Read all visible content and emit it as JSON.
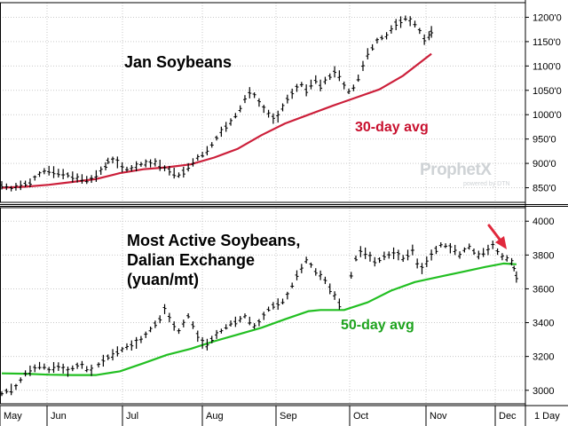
{
  "chart_data": [
    {
      "type": "ohlc",
      "title": "Jan Soybeans",
      "x": [
        "May",
        "Jun",
        "Jul",
        "Aug",
        "Sep",
        "Oct",
        "Nov",
        "Dec"
      ],
      "ylim": [
        820,
        1230
      ],
      "y_ticks": [
        "1200'0",
        "1150'0",
        "1100'0",
        "1050'0",
        "1000'0",
        "950'0",
        "900'0",
        "850'0"
      ],
      "y_tick_values": [
        1200,
        1150,
        1100,
        1050,
        1000,
        950,
        900,
        850
      ],
      "grid": true,
      "price_series": {
        "color": "#000000",
        "values": [
          [
            0,
            855
          ],
          [
            4,
            852
          ],
          [
            8,
            848
          ],
          [
            12,
            852
          ],
          [
            16,
            855
          ],
          [
            20,
            858
          ],
          [
            24,
            860
          ],
          [
            28,
            870
          ],
          [
            32,
            878
          ],
          [
            36,
            884
          ],
          [
            40,
            885
          ],
          [
            44,
            882
          ],
          [
            48,
            880
          ],
          [
            52,
            878
          ],
          [
            56,
            876
          ],
          [
            60,
            872
          ],
          [
            64,
            870
          ],
          [
            68,
            868
          ],
          [
            72,
            866
          ],
          [
            76,
            868
          ],
          [
            80,
            874
          ],
          [
            84,
            885
          ],
          [
            88,
            894
          ],
          [
            90,
            905
          ],
          [
            94,
            907
          ],
          [
            98,
            902
          ],
          [
            102,
            892
          ],
          [
            106,
            888
          ],
          [
            110,
            890
          ],
          [
            114,
            894
          ],
          [
            118,
            898
          ],
          [
            122,
            900
          ],
          [
            126,
            900
          ],
          [
            130,
            902
          ],
          [
            134,
            896
          ],
          [
            138,
            890
          ],
          [
            142,
            885
          ],
          [
            146,
            880
          ],
          [
            150,
            876
          ],
          [
            154,
            882
          ],
          [
            158,
            892
          ],
          [
            162,
            902
          ],
          [
            166,
            912
          ],
          [
            170,
            918
          ],
          [
            174,
            926
          ],
          [
            178,
            938
          ],
          [
            182,
            952
          ],
          [
            186,
            965
          ],
          [
            190,
            975
          ],
          [
            194,
            985
          ],
          [
            198,
            998
          ],
          [
            202,
            1012
          ],
          [
            206,
            1032
          ],
          [
            210,
            1045
          ],
          [
            214,
            1040
          ],
          [
            218,
            1025
          ],
          [
            222,
            1012
          ],
          [
            226,
            1002
          ],
          [
            230,
            992
          ],
          [
            234,
            996
          ],
          [
            238,
            1015
          ],
          [
            242,
            1032
          ],
          [
            246,
            1043
          ],
          [
            250,
            1055
          ],
          [
            254,
            1062
          ],
          [
            258,
            1050
          ],
          [
            262,
            1062
          ],
          [
            266,
            1072
          ],
          [
            270,
            1060
          ],
          [
            274,
            1070
          ],
          [
            278,
            1078
          ],
          [
            282,
            1088
          ],
          [
            286,
            1080
          ],
          [
            290,
            1060
          ],
          [
            294,
            1048
          ],
          [
            298,
            1055
          ],
          [
            302,
            1075
          ],
          [
            306,
            1100
          ],
          [
            310,
            1125
          ],
          [
            314,
            1138
          ],
          [
            318,
            1152
          ],
          [
            322,
            1158
          ],
          [
            326,
            1162
          ],
          [
            330,
            1175
          ],
          [
            334,
            1185
          ],
          [
            338,
            1190
          ],
          [
            342,
            1198
          ],
          [
            346,
            1192
          ],
          [
            350,
            1186
          ],
          [
            354,
            1172
          ],
          [
            358,
            1154
          ],
          [
            362,
            1162
          ],
          [
            364,
            1170
          ]
        ]
      },
      "moving_average": {
        "label": "30-day avg",
        "color": "#cc1f3a",
        "values": [
          [
            0,
            850
          ],
          [
            20,
            852
          ],
          [
            40,
            856
          ],
          [
            60,
            862
          ],
          [
            80,
            868
          ],
          [
            100,
            880
          ],
          [
            120,
            888
          ],
          [
            140,
            892
          ],
          [
            160,
            898
          ],
          [
            180,
            912
          ],
          [
            200,
            930
          ],
          [
            220,
            958
          ],
          [
            240,
            982
          ],
          [
            260,
            1000
          ],
          [
            280,
            1018
          ],
          [
            300,
            1035
          ],
          [
            320,
            1052
          ],
          [
            340,
            1080
          ],
          [
            364,
            1125
          ]
        ]
      },
      "watermark": [
        "ProphetX",
        "powered by DTN"
      ]
    },
    {
      "type": "ohlc",
      "title_lines": [
        "Most Active Soybeans,",
        "Dalian Exchange",
        "(yuan/mt)"
      ],
      "x": [
        "May",
        "Jun",
        "Jul",
        "Aug",
        "Sep",
        "Oct",
        "Nov",
        "Dec"
      ],
      "ylim": [
        2920,
        4080
      ],
      "y_ticks": [
        "4000",
        "3800",
        "3600",
        "3400",
        "3200",
        "3000"
      ],
      "y_tick_values": [
        4000,
        3800,
        3600,
        3400,
        3200,
        3000
      ],
      "grid": true,
      "price_series": {
        "color": "#000000",
        "segments": [
          [
            [
              0,
              2980
            ],
            [
              4,
              2995
            ],
            [
              8,
              3005
            ],
            [
              12,
              3020
            ],
            [
              16,
              3060
            ],
            [
              20,
              3100
            ],
            [
              24,
              3115
            ],
            [
              28,
              3130
            ],
            [
              32,
              3145
            ],
            [
              36,
              3140
            ],
            [
              40,
              3120
            ],
            [
              44,
              3135
            ],
            [
              48,
              3140
            ],
            [
              52,
              3128
            ],
            [
              56,
              3110
            ],
            [
              60,
              3130
            ],
            [
              64,
              3145
            ],
            [
              68,
              3150
            ],
            [
              72,
              3125
            ],
            [
              76,
              3118
            ]
          ],
          [
            [
              82,
              3150
            ],
            [
              86,
              3175
            ],
            [
              90,
              3195
            ],
            [
              94,
              3210
            ],
            [
              98,
              3230
            ],
            [
              102,
              3240
            ],
            [
              106,
              3258
            ],
            [
              110,
              3265
            ],
            [
              114,
              3280
            ],
            [
              118,
              3300
            ],
            [
              122,
              3328
            ],
            [
              126,
              3360
            ],
            [
              130,
              3390
            ],
            [
              134,
              3420
            ],
            [
              138,
              3480
            ],
            [
              142,
              3430
            ],
            [
              146,
              3380
            ],
            [
              150,
              3350
            ],
            [
              154,
              3395
            ],
            [
              158,
              3440
            ],
            [
              162,
              3385
            ],
            [
              166,
              3320
            ],
            [
              170,
              3280
            ],
            [
              174,
              3270
            ],
            [
              178,
              3300
            ],
            [
              182,
              3330
            ],
            [
              186,
              3350
            ],
            [
              190,
              3375
            ],
            [
              194,
              3395
            ],
            [
              198,
              3405
            ],
            [
              202,
              3420
            ],
            [
              206,
              3440
            ],
            [
              210,
              3410
            ],
            [
              214,
              3380
            ],
            [
              218,
              3400
            ],
            [
              222,
              3440
            ],
            [
              226,
              3480
            ],
            [
              230,
              3500
            ],
            [
              234,
              3510
            ],
            [
              238,
              3525
            ],
            [
              242,
              3560
            ],
            [
              246,
              3620
            ],
            [
              250,
              3680
            ],
            [
              254,
              3720
            ],
            [
              258,
              3770
            ],
            [
              262,
              3740
            ],
            [
              266,
              3700
            ],
            [
              270,
              3680
            ],
            [
              274,
              3650
            ],
            [
              278,
              3600
            ],
            [
              282,
              3560
            ],
            [
              286,
              3510
            ]
          ],
          [
            [
              296,
              3680
            ],
            [
              300,
              3780
            ],
            [
              304,
              3820
            ],
            [
              308,
              3810
            ],
            [
              312,
              3790
            ],
            [
              316,
              3760
            ],
            [
              320,
              3770
            ],
            [
              324,
              3795
            ],
            [
              328,
              3800
            ],
            [
              332,
              3810
            ],
            [
              336,
              3800
            ],
            [
              340,
              3780
            ],
            [
              344,
              3800
            ],
            [
              348,
              3830
            ],
            [
              352,
              3750
            ],
            [
              356,
              3720
            ],
            [
              360,
              3760
            ],
            [
              364,
              3800
            ],
            [
              368,
              3830
            ],
            [
              372,
              3860
            ],
            [
              376,
              3855
            ],
            [
              380,
              3840
            ],
            [
              384,
              3830
            ],
            [
              388,
              3800
            ],
            [
              392,
              3830
            ],
            [
              396,
              3850
            ],
            [
              400,
              3820
            ],
            [
              404,
              3800
            ],
            [
              408,
              3815
            ],
            [
              412,
              3830
            ],
            [
              416,
              3860
            ],
            [
              420,
              3820
            ],
            [
              424,
              3790
            ],
            [
              428,
              3780
            ],
            [
              432,
              3760
            ],
            [
              434,
              3720
            ],
            [
              436,
              3670
            ]
          ]
        ]
      },
      "moving_average": {
        "label": "50-day avg",
        "color": "#22bf22",
        "values": [
          [
            0,
            3100
          ],
          [
            20,
            3098
          ],
          [
            40,
            3092
          ],
          [
            60,
            3090
          ],
          [
            80,
            3090
          ],
          [
            100,
            3112
          ],
          [
            120,
            3160
          ],
          [
            140,
            3210
          ],
          [
            160,
            3245
          ],
          [
            180,
            3290
          ],
          [
            200,
            3330
          ],
          [
            220,
            3370
          ],
          [
            240,
            3420
          ],
          [
            260,
            3468
          ],
          [
            270,
            3475
          ],
          [
            290,
            3475
          ],
          [
            310,
            3520
          ],
          [
            330,
            3590
          ],
          [
            350,
            3640
          ],
          [
            370,
            3670
          ],
          [
            390,
            3700
          ],
          [
            410,
            3730
          ],
          [
            425,
            3750
          ],
          [
            436,
            3745
          ]
        ]
      },
      "arrow_color": "#e0283c"
    }
  ],
  "timeframe_label": "1 Day"
}
